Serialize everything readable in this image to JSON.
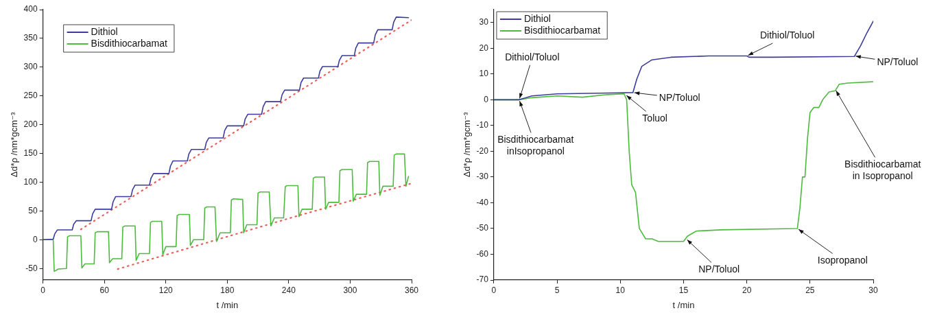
{
  "chart_data": [
    {
      "type": "line",
      "xlabel": "t /min",
      "ylabel": "Δd*ρ /nm*gcm⁻³",
      "xlim": [
        0,
        360
      ],
      "ylim": [
        -70,
        400
      ],
      "xticks": [
        0,
        60,
        120,
        180,
        240,
        300,
        360
      ],
      "yticks": [
        -50,
        0,
        50,
        100,
        150,
        200,
        250,
        300,
        350,
        400
      ],
      "grid": false,
      "legend": "top left",
      "marker": "none",
      "line_style": "solid",
      "series": [
        {
          "name": "Dithiol",
          "color": "#3b3b9b",
          "x": [
            0,
            10,
            11.5,
            14,
            28.6,
            30,
            32.5,
            47,
            48.5,
            51,
            67,
            68.5,
            71,
            86,
            87.5,
            90,
            104,
            105.5,
            108,
            123,
            124.5,
            127,
            141,
            142.5,
            145,
            158,
            159.5,
            162,
            176,
            177.5,
            180,
            196,
            197.5,
            200,
            213.5,
            215,
            217.5,
            232,
            233.5,
            236,
            250.5,
            252,
            254.5,
            269,
            270.5,
            273,
            288,
            289.5,
            292,
            304,
            305.5,
            308,
            323,
            324.5,
            327,
            341,
            342.5,
            345,
            357
          ],
          "values": [
            0,
            1,
            10,
            17,
            17,
            27,
            33,
            33,
            45,
            53,
            53,
            66,
            75,
            75,
            87,
            95,
            95,
            107,
            115,
            115,
            128,
            137,
            137,
            149,
            157,
            157,
            169,
            177,
            177,
            190,
            198,
            198,
            210,
            218,
            218,
            231,
            240,
            240,
            252,
            260,
            260,
            273,
            281,
            281,
            293,
            301,
            301,
            312,
            320,
            320,
            333,
            342,
            342,
            356,
            365,
            365,
            378,
            387,
            386
          ]
        },
        {
          "name": "Bisdithiocarbamat",
          "color": "#4cbb3c",
          "x": [
            0,
            10,
            11,
            15,
            23,
            24,
            26,
            37,
            38,
            41,
            50,
            51,
            53,
            64,
            65,
            68,
            77,
            78,
            80,
            90,
            91,
            94,
            104,
            105,
            107,
            116,
            117,
            120,
            130,
            131,
            133,
            143,
            144,
            147,
            157,
            158,
            160,
            168,
            169.5,
            173,
            183,
            184,
            186,
            195,
            196,
            199,
            209,
            210,
            212,
            221,
            222.6,
            226,
            235,
            236.6,
            238,
            249,
            250,
            253,
            263,
            264,
            266,
            275,
            276,
            279,
            289,
            290,
            292,
            302,
            303,
            306,
            316,
            317,
            319,
            328,
            329,
            332,
            342,
            343,
            345,
            353,
            354.5,
            357
          ],
          "values": [
            0,
            0,
            -55,
            -51,
            -50,
            5,
            7,
            7,
            -49,
            -42,
            -42,
            12,
            14,
            14,
            -40,
            -33,
            -33,
            22,
            24,
            24,
            -36,
            -24,
            -24,
            30,
            32,
            32,
            -26,
            -12,
            -12,
            42,
            44,
            44,
            -10,
            0,
            0,
            55,
            57,
            57,
            -3,
            12,
            12,
            69,
            71,
            70,
            12,
            26,
            26,
            81,
            83,
            83,
            24,
            38,
            38,
            92,
            94,
            94,
            40,
            53,
            53,
            107,
            109,
            109,
            53,
            65,
            65,
            120,
            122,
            122,
            67,
            79,
            79,
            134,
            136,
            136,
            77,
            93,
            93,
            147,
            149,
            149,
            93,
            110
          ]
        },
        {
          "type": "line",
          "color": "#e8605a",
          "line_style": "dotted",
          "x": [
            37,
            360
          ],
          "values": [
            18,
            382
          ]
        },
        {
          "type": "line",
          "color": "#e8605a",
          "line_style": "dotted",
          "x": [
            73,
            240,
            360
          ],
          "values": [
            -51,
            37,
            98
          ]
        }
      ]
    },
    {
      "type": "line",
      "xlabel": "t /min",
      "ylabel": "Δd*ρ /nm*gcm⁻³",
      "xlim": [
        0,
        30
      ],
      "ylim": [
        -70,
        35
      ],
      "xticks": [
        0,
        5,
        10,
        15,
        20,
        25,
        30
      ],
      "yticks": [
        -70,
        -60,
        -50,
        -40,
        -30,
        -20,
        -10,
        0,
        10,
        20,
        30
      ],
      "grid": false,
      "legend": "top left",
      "marker": "none",
      "line_style": "solid",
      "series": [
        {
          "name": "Dithiol",
          "color": "#3b3b9b",
          "x": [
            0,
            2,
            3,
            5,
            10,
            11,
            11.3,
            11.7,
            12.5,
            14,
            17,
            20,
            20.2,
            22,
            28.5,
            29,
            29.5,
            30
          ],
          "values": [
            0,
            0,
            1.5,
            2.3,
            2.7,
            2.8,
            8,
            13,
            15.5,
            16.5,
            17,
            17,
            16.5,
            16.5,
            16.8,
            21,
            26,
            30.5
          ]
        },
        {
          "name": "Bisdithiocarbamat",
          "color": "#4cbb3c",
          "x": [
            0,
            2,
            3,
            5,
            7,
            9,
            10.3,
            10.5,
            10.7,
            10.9,
            11.2,
            11.5,
            12,
            12.5,
            13,
            15,
            15.3,
            16,
            18,
            24,
            24.2,
            24.4,
            24.6,
            24.8,
            25,
            25.3,
            25.7,
            26,
            26.5,
            27,
            27.3,
            28,
            30
          ],
          "values": [
            0,
            0,
            0.8,
            1.5,
            1,
            2,
            2.3,
            0,
            -20,
            -33,
            -36,
            -50,
            -54,
            -54,
            -55,
            -55,
            -53,
            -51,
            -50.5,
            -50,
            -42,
            -30,
            -30,
            -15,
            -5,
            -3,
            -3,
            0,
            3,
            3.5,
            6,
            6.5,
            7
          ]
        }
      ],
      "annotations": [
        {
          "text": "Dithiol/Toluol",
          "x": 2,
          "y": 0
        },
        {
          "text": "Bisdithiocarbamat\ninIsopropanol",
          "x": 2,
          "y": 0
        },
        {
          "text": "NP/Toluol",
          "x": 11,
          "y": 2.8
        },
        {
          "text": "Toluol",
          "x": 10.4,
          "y": 2
        },
        {
          "text": "NP/Toluol",
          "x": 15.2,
          "y": -54
        },
        {
          "text": "Dithiol/Toluol",
          "x": 20,
          "y": 17
        },
        {
          "text": "NP/Toluol",
          "x": 28.5,
          "y": 17
        },
        {
          "text": "Isopropanol",
          "x": 24,
          "y": -50
        },
        {
          "text": "Bisdithiocarbamat\nin Isopropanol",
          "x": 27,
          "y": 4
        }
      ]
    }
  ]
}
